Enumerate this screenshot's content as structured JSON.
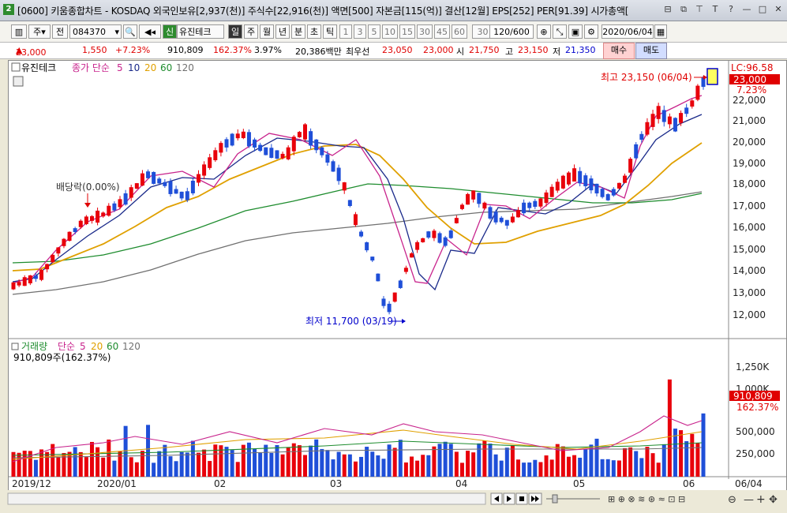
{
  "window": {
    "title": "[0600] 키움종합차트 - KOSDAQ 외국인보유[2,937(천)] 주식수[22,916(천)] 액면[500] 자본금[115(억)] 결산[12월] EPS[252] PER[91.39] 시가총액[",
    "app_icon": "2"
  },
  "toolbar": {
    "type_label": "주",
    "prev_label": "전",
    "code": "084370",
    "new_badge": "신",
    "stock_name": "유진테크",
    "periods": [
      "일",
      "주",
      "월",
      "년",
      "분",
      "초",
      "틱"
    ],
    "minutes": [
      "1",
      "3",
      "5",
      "10",
      "15",
      "30",
      "45",
      "60"
    ],
    "minute_select": "30",
    "count": "120/600",
    "date": "2020/06/04"
  },
  "quote": {
    "price": "23,000",
    "change": "1,550",
    "change_pct": "+7.23%",
    "volume": "910,809",
    "volume_ratio": "162.37%",
    "turnover": "3.97%",
    "amount": "20,386백만",
    "best_bid_label": "최우선",
    "ask": "23,050",
    "bid": "23,000",
    "open_label": "시",
    "open": "21,750",
    "high_label": "고",
    "high": "23,150",
    "low_label": "저",
    "low": "21,350",
    "buy_label": "매수",
    "sell_label": "매도"
  },
  "price_panel": {
    "stock_label": "유진테크",
    "ma_label": "종가 단순",
    "ma_periods": [
      "5",
      "10",
      "20",
      "60",
      "120"
    ],
    "lc_label": "LC:96.58",
    "current_price_label": "23,000",
    "current_pct_label": "7.23%",
    "high_annotation": "최고 23,150 (06/04)",
    "low_annotation": "최저 11,700 (03/19)",
    "dividend_annotation": "배당락(0.00%)",
    "y_ticks": [
      "22,000",
      "21,000",
      "20,000",
      "19,000",
      "18,000",
      "17,000",
      "16,000",
      "15,000",
      "14,000",
      "13,000",
      "12,000"
    ]
  },
  "volume_panel": {
    "label": "거래량",
    "ma_label": "단순",
    "ma_periods": [
      "5",
      "20",
      "60",
      "120"
    ],
    "value_label": "910,809주(162.37%)",
    "current_label": "910,809",
    "current_pct_label": "162.37%",
    "y_ticks": [
      "1,250K",
      "1,000K",
      "500,000",
      "250,000"
    ]
  },
  "x_axis": {
    "labels": [
      "2019/12",
      "2020/01",
      "02",
      "03",
      "04",
      "05",
      "06",
      "06/04"
    ]
  },
  "colors": {
    "up": "#e8000b",
    "down": "#1f4fd8",
    "ma5": "#c8238c",
    "ma10": "#1a2a8a",
    "ma20": "#e0a000",
    "ma60": "#1e8c2e",
    "ma120": "#707070"
  }
}
